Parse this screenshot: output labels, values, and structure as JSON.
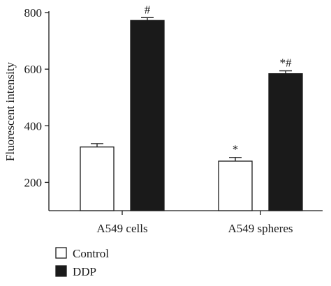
{
  "chart_data": {
    "type": "bar",
    "ylabel": "Fluorescent intensity",
    "xlabel": "",
    "title": "",
    "ylim": [
      100,
      800
    ],
    "yticks": [
      200,
      400,
      600,
      800
    ],
    "categories": [
      "A549 cells",
      "A549 spheres"
    ],
    "series": [
      {
        "name": "Control",
        "color": "#ffffff",
        "values": [
          325,
          275
        ],
        "errors": [
          12,
          13
        ],
        "annotations": [
          "",
          "*"
        ]
      },
      {
        "name": "DDP",
        "color": "#1a1a1a",
        "values": [
          772,
          584
        ],
        "errors": [
          10,
          10
        ],
        "annotations": [
          "#",
          "*#"
        ]
      }
    ],
    "legend": "bottom-left"
  }
}
